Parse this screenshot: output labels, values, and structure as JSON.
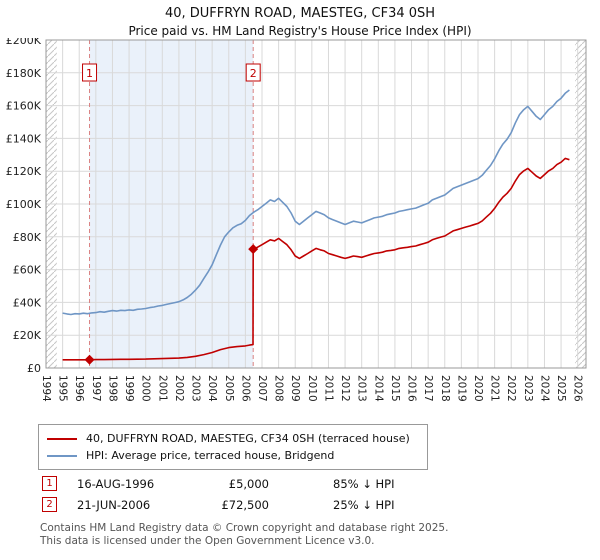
{
  "page": {
    "title": "40, DUFFRYN ROAD, MAESTEG, CF34 0SH",
    "subtitle": "Price paid vs. HM Land Registry's House Price Index (HPI)",
    "accent_color": "#c00000"
  },
  "chart_data": {
    "type": "line",
    "title": "Price paid vs. HM Land Registry's House Price Index (HPI)",
    "xlim": [
      1994,
      2026.5
    ],
    "ylim": [
      0,
      200000
    ],
    "xticks": [
      1994,
      1995,
      1996,
      1997,
      1998,
      1999,
      2000,
      2001,
      2002,
      2003,
      2004,
      2005,
      2006,
      2007,
      2008,
      2009,
      2010,
      2011,
      2012,
      2013,
      2014,
      2015,
      2016,
      2017,
      2018,
      2019,
      2020,
      2021,
      2022,
      2023,
      2024,
      2025,
      2026
    ],
    "yticks": [
      0,
      20000,
      40000,
      60000,
      80000,
      100000,
      120000,
      140000,
      160000,
      180000,
      200000
    ],
    "ytick_labels": [
      "£0",
      "£20K",
      "£40K",
      "£60K",
      "£80K",
      "£100K",
      "£120K",
      "£140K",
      "£160K",
      "£180K",
      "£200K"
    ],
    "grid": true,
    "legend_position": "bottom",
    "shaded_region": {
      "from": 1996.62,
      "to": 2006.47,
      "color": "#eaf1fa"
    },
    "hatch_regions": [
      [
        1994,
        1994.65
      ],
      [
        2025.85,
        2026.5
      ]
    ],
    "sale_line_color": "#d98080",
    "grid_color": "#d9d9d9",
    "series": [
      {
        "name": "40, DUFFRYN ROAD, MAESTEG, CF34 0SH (terraced house)",
        "color": "#c00000",
        "points": [
          [
            1995.0,
            5000
          ],
          [
            1995.5,
            5000
          ],
          [
            1996.0,
            5000
          ],
          [
            1996.62,
            5000
          ],
          [
            1997.0,
            5100
          ],
          [
            1997.5,
            5150
          ],
          [
            1998.0,
            5250
          ],
          [
            1998.5,
            5280
          ],
          [
            1999.0,
            5310
          ],
          [
            1999.5,
            5370
          ],
          [
            2000.0,
            5450
          ],
          [
            2000.5,
            5580
          ],
          [
            2001.0,
            5730
          ],
          [
            2001.5,
            5900
          ],
          [
            2002.0,
            6060
          ],
          [
            2002.5,
            6450
          ],
          [
            2003.0,
            7130
          ],
          [
            2003.5,
            8180
          ],
          [
            2004.0,
            9450
          ],
          [
            2004.5,
            11250
          ],
          [
            2005.0,
            12450
          ],
          [
            2005.5,
            13050
          ],
          [
            2006.0,
            13500
          ],
          [
            2006.25,
            13950
          ],
          [
            2006.46,
            14250
          ],
          [
            2006.47,
            72500
          ],
          [
            2006.75,
            73700
          ],
          [
            2007.0,
            75200
          ],
          [
            2007.25,
            76700
          ],
          [
            2007.5,
            78200
          ],
          [
            2007.75,
            77500
          ],
          [
            2008.0,
            79000
          ],
          [
            2008.25,
            77100
          ],
          [
            2008.5,
            75200
          ],
          [
            2008.75,
            72100
          ],
          [
            2009.0,
            68300
          ],
          [
            2009.25,
            66800
          ],
          [
            2009.5,
            68300
          ],
          [
            2009.75,
            69800
          ],
          [
            2010.0,
            71400
          ],
          [
            2010.25,
            72900
          ],
          [
            2010.5,
            72100
          ],
          [
            2010.75,
            71400
          ],
          [
            2011.0,
            69800
          ],
          [
            2011.25,
            69100
          ],
          [
            2011.5,
            68300
          ],
          [
            2011.75,
            67500
          ],
          [
            2012.0,
            66800
          ],
          [
            2012.25,
            67500
          ],
          [
            2012.5,
            68300
          ],
          [
            2012.75,
            67900
          ],
          [
            2013.0,
            67500
          ],
          [
            2013.25,
            68300
          ],
          [
            2013.5,
            69100
          ],
          [
            2013.75,
            69800
          ],
          [
            2014.0,
            70200
          ],
          [
            2014.25,
            70600
          ],
          [
            2014.5,
            71400
          ],
          [
            2014.75,
            71700
          ],
          [
            2015.0,
            72100
          ],
          [
            2015.25,
            72900
          ],
          [
            2015.5,
            73300
          ],
          [
            2015.75,
            73600
          ],
          [
            2016.0,
            74000
          ],
          [
            2016.25,
            74400
          ],
          [
            2016.5,
            75200
          ],
          [
            2016.75,
            75900
          ],
          [
            2017.0,
            76700
          ],
          [
            2017.25,
            78200
          ],
          [
            2017.5,
            79000
          ],
          [
            2017.75,
            79800
          ],
          [
            2018.0,
            80500
          ],
          [
            2018.25,
            82000
          ],
          [
            2018.5,
            83600
          ],
          [
            2018.75,
            84300
          ],
          [
            2019.0,
            85100
          ],
          [
            2019.25,
            85900
          ],
          [
            2019.5,
            86600
          ],
          [
            2019.75,
            87400
          ],
          [
            2020.0,
            88200
          ],
          [
            2020.25,
            89700
          ],
          [
            2020.5,
            92000
          ],
          [
            2020.75,
            94300
          ],
          [
            2021.0,
            97300
          ],
          [
            2021.25,
            101100
          ],
          [
            2021.5,
            104200
          ],
          [
            2021.75,
            106500
          ],
          [
            2022.0,
            109500
          ],
          [
            2022.25,
            114100
          ],
          [
            2022.5,
            117900
          ],
          [
            2022.75,
            120200
          ],
          [
            2023.0,
            121700
          ],
          [
            2023.25,
            119400
          ],
          [
            2023.5,
            117100
          ],
          [
            2023.75,
            115600
          ],
          [
            2024.0,
            117900
          ],
          [
            2024.25,
            120200
          ],
          [
            2024.5,
            121700
          ],
          [
            2024.75,
            124000
          ],
          [
            2025.0,
            125500
          ],
          [
            2025.25,
            127800
          ],
          [
            2025.5,
            127000
          ]
        ]
      },
      {
        "name": "HPI: Average price, terraced house, Bridgend",
        "color": "#6f96c5",
        "points": [
          [
            1995.0,
            33500
          ],
          [
            1995.25,
            33000
          ],
          [
            1995.5,
            32600
          ],
          [
            1995.75,
            33100
          ],
          [
            1996.0,
            33000
          ],
          [
            1996.25,
            33400
          ],
          [
            1996.5,
            33100
          ],
          [
            1996.75,
            33600
          ],
          [
            1997.0,
            33800
          ],
          [
            1997.25,
            34300
          ],
          [
            1997.5,
            34000
          ],
          [
            1997.75,
            34600
          ],
          [
            1998.0,
            35000
          ],
          [
            1998.25,
            34700
          ],
          [
            1998.5,
            35200
          ],
          [
            1998.75,
            35000
          ],
          [
            1999.0,
            35400
          ],
          [
            1999.25,
            35200
          ],
          [
            1999.5,
            35800
          ],
          [
            1999.75,
            36000
          ],
          [
            2000.0,
            36300
          ],
          [
            2000.25,
            36800
          ],
          [
            2000.5,
            37200
          ],
          [
            2000.75,
            37800
          ],
          [
            2001.0,
            38200
          ],
          [
            2001.25,
            38800
          ],
          [
            2001.5,
            39300
          ],
          [
            2001.75,
            39900
          ],
          [
            2002.0,
            40400
          ],
          [
            2002.25,
            41500
          ],
          [
            2002.5,
            43000
          ],
          [
            2002.75,
            45000
          ],
          [
            2003.0,
            47500
          ],
          [
            2003.25,
            50500
          ],
          [
            2003.5,
            54500
          ],
          [
            2003.75,
            58500
          ],
          [
            2004.0,
            63000
          ],
          [
            2004.25,
            69000
          ],
          [
            2004.5,
            75000
          ],
          [
            2004.75,
            80000
          ],
          [
            2005.0,
            83000
          ],
          [
            2005.25,
            85500
          ],
          [
            2005.5,
            87000
          ],
          [
            2005.75,
            88000
          ],
          [
            2006.0,
            90000
          ],
          [
            2006.25,
            93000
          ],
          [
            2006.5,
            95000
          ],
          [
            2006.75,
            96500
          ],
          [
            2007.0,
            98500
          ],
          [
            2007.25,
            100500
          ],
          [
            2007.5,
            102500
          ],
          [
            2007.75,
            101500
          ],
          [
            2008.0,
            103500
          ],
          [
            2008.25,
            101000
          ],
          [
            2008.5,
            98500
          ],
          [
            2008.75,
            94500
          ],
          [
            2009.0,
            89500
          ],
          [
            2009.25,
            87500
          ],
          [
            2009.5,
            89500
          ],
          [
            2009.75,
            91500
          ],
          [
            2010.0,
            93500
          ],
          [
            2010.25,
            95500
          ],
          [
            2010.5,
            94500
          ],
          [
            2010.75,
            93500
          ],
          [
            2011.0,
            91500
          ],
          [
            2011.25,
            90500
          ],
          [
            2011.5,
            89500
          ],
          [
            2011.75,
            88500
          ],
          [
            2012.0,
            87500
          ],
          [
            2012.25,
            88500
          ],
          [
            2012.5,
            89500
          ],
          [
            2012.75,
            89000
          ],
          [
            2013.0,
            88500
          ],
          [
            2013.25,
            89500
          ],
          [
            2013.5,
            90500
          ],
          [
            2013.75,
            91500
          ],
          [
            2014.0,
            92000
          ],
          [
            2014.25,
            92500
          ],
          [
            2014.5,
            93500
          ],
          [
            2014.75,
            94000
          ],
          [
            2015.0,
            94500
          ],
          [
            2015.25,
            95500
          ],
          [
            2015.5,
            96000
          ],
          [
            2015.75,
            96500
          ],
          [
            2016.0,
            97000
          ],
          [
            2016.25,
            97500
          ],
          [
            2016.5,
            98500
          ],
          [
            2016.75,
            99500
          ],
          [
            2017.0,
            100500
          ],
          [
            2017.25,
            102500
          ],
          [
            2017.5,
            103500
          ],
          [
            2017.75,
            104500
          ],
          [
            2018.0,
            105500
          ],
          [
            2018.25,
            107500
          ],
          [
            2018.5,
            109500
          ],
          [
            2018.75,
            110500
          ],
          [
            2019.0,
            111500
          ],
          [
            2019.25,
            112500
          ],
          [
            2019.5,
            113500
          ],
          [
            2019.75,
            114500
          ],
          [
            2020.0,
            115500
          ],
          [
            2020.25,
            117500
          ],
          [
            2020.5,
            120500
          ],
          [
            2020.75,
            123500
          ],
          [
            2021.0,
            127500
          ],
          [
            2021.25,
            132500
          ],
          [
            2021.5,
            136500
          ],
          [
            2021.75,
            139500
          ],
          [
            2022.0,
            143500
          ],
          [
            2022.25,
            149500
          ],
          [
            2022.5,
            154500
          ],
          [
            2022.75,
            157500
          ],
          [
            2023.0,
            159500
          ],
          [
            2023.25,
            156500
          ],
          [
            2023.5,
            153500
          ],
          [
            2023.75,
            151500
          ],
          [
            2024.0,
            154500
          ],
          [
            2024.25,
            157500
          ],
          [
            2024.5,
            159500
          ],
          [
            2024.75,
            162500
          ],
          [
            2025.0,
            164500
          ],
          [
            2025.25,
            167500
          ],
          [
            2025.5,
            169500
          ]
        ]
      }
    ],
    "sales": [
      {
        "label": "1",
        "x": 1996.62,
        "y": 5000,
        "date": "16-AUG-1996",
        "price": "£5,000",
        "vs_hpi": "85% ↓ HPI"
      },
      {
        "label": "2",
        "x": 2006.47,
        "y": 72500,
        "date": "21-JUN-2006",
        "price": "£72,500",
        "vs_hpi": "25% ↓ HPI"
      }
    ]
  },
  "footer": {
    "line1": "Contains HM Land Registry data © Crown copyright and database right 2025.",
    "line2": "This data is licensed under the Open Government Licence v3.0."
  }
}
